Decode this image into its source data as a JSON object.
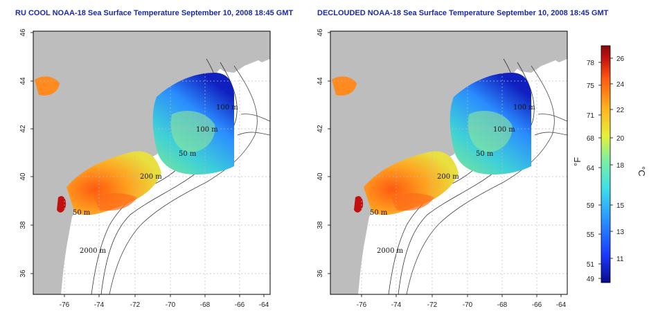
{
  "panels": [
    {
      "id": "left",
      "title": "RU COOL NOAA-18 Sea Surface Temperature September 10, 2008 18:45 GMT",
      "xticks": [
        "-76",
        "-74",
        "-72",
        "-70",
        "-68",
        "-66",
        "-64"
      ],
      "yticks": [
        "36",
        "38",
        "40",
        "42",
        "44",
        "46"
      ],
      "contour_labels": [
        "100 m",
        "100 m",
        "50 m",
        "200 m",
        "50 m",
        "2000 m"
      ]
    },
    {
      "id": "right",
      "title": "DECLOUDED NOAA-18 Sea Surface Temperature September 10, 2008 18:45 GMT",
      "xticks": [
        "-76",
        "-74",
        "-72",
        "-70",
        "-68",
        "-66",
        "-64"
      ],
      "yticks": [
        "36",
        "38",
        "40",
        "42",
        "44",
        "46"
      ],
      "contour_labels": [
        "100 m",
        "100 m",
        "50 m",
        "200 m",
        "50 m",
        "2000 m"
      ]
    }
  ],
  "colorbar": {
    "fahrenheit_ticks": [
      "78",
      "75",
      "71",
      "68",
      "64",
      "59",
      "55",
      "51",
      "49"
    ],
    "celsius_ticks": [
      "26",
      "24",
      "22",
      "20",
      "18",
      "15",
      "13",
      "11"
    ],
    "fahrenheit_unit": "°F",
    "celsius_unit": "°C",
    "colors": [
      "#0a0a8c",
      "#1a3cff",
      "#2a9cff",
      "#3ee0e8",
      "#7ef0a0",
      "#e8f03a",
      "#ffb020",
      "#ff5a10",
      "#c01010",
      "#8a0a0a"
    ]
  },
  "map_colors": {
    "land": "#bdbdbd",
    "ocean": "#ffffff",
    "grid": "#bbbbbb",
    "title": "#1a2aa6"
  }
}
